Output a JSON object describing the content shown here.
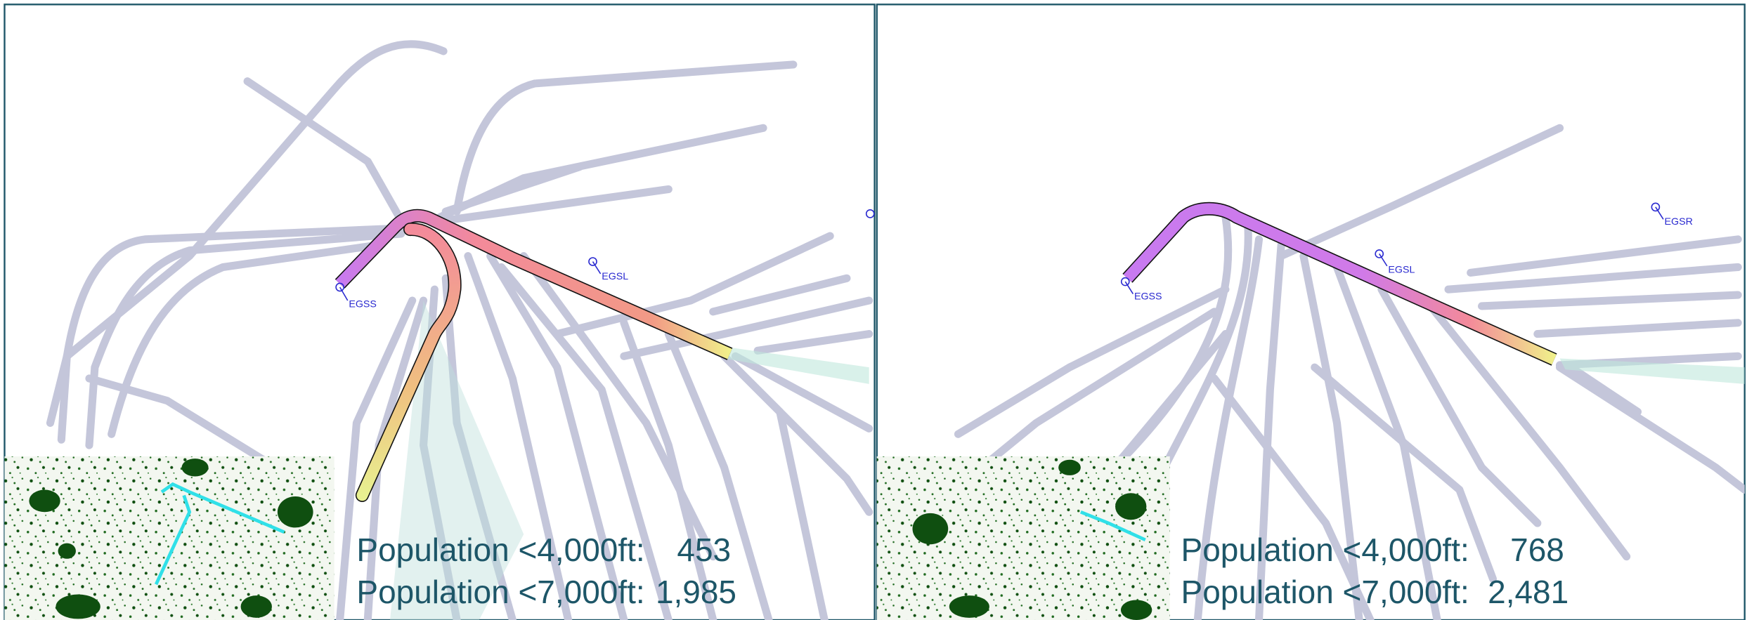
{
  "panels": [
    {
      "airports": [
        "EGSS",
        "EGSL"
      ],
      "stats": [
        {
          "label": "Population <4,000ft:",
          "value": "453"
        },
        {
          "label": "Population <7,000ft:",
          "value": "1,985"
        }
      ]
    },
    {
      "airports": [
        "EGSS",
        "EGSL",
        "EGSR"
      ],
      "stats": [
        {
          "label": "Population <4,000ft:",
          "value": "768"
        },
        {
          "label": "Population <7,000ft:",
          "value": "2,481"
        }
      ]
    }
  ]
}
